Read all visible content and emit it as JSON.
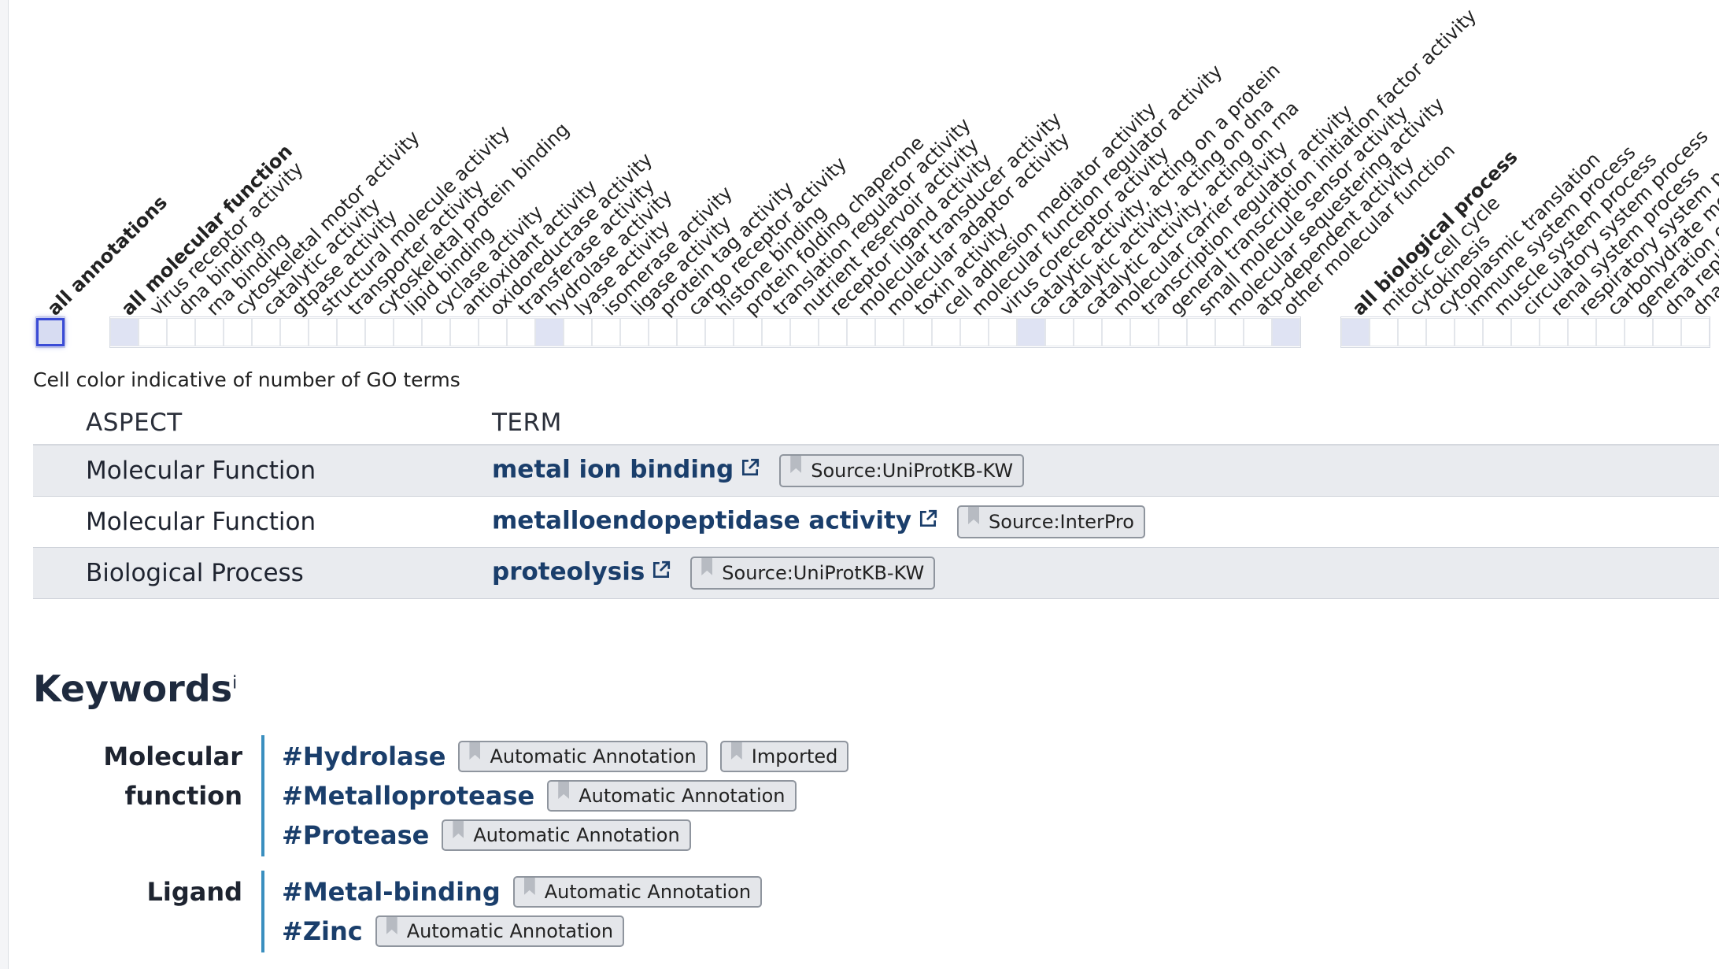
{
  "ribbon": {
    "groups": [
      {
        "labels": [
          "all annotations"
        ],
        "filled": [
          0
        ],
        "selected": [
          0
        ]
      },
      {
        "labels": [
          "all molecular function",
          "virus receptor activity",
          "dna binding",
          "rna binding",
          "cytoskeletal motor activity",
          "catalytic activity",
          "gtpase activity",
          "structural molecule activity",
          "transporter activity",
          "cytoskeletal protein binding",
          "lipid binding",
          "cyclase activity",
          "antioxidant activity",
          "oxidoreductase activity",
          "transferase activity",
          "hydrolase activity",
          "lyase activity",
          "isomerase activity",
          "ligase activity",
          "protein tag activity",
          "cargo receptor activity",
          "histone binding",
          "protein folding chaperone",
          "translation regulator activity",
          "nutrient reservoir activity",
          "receptor ligand activity",
          "molecular transducer activity",
          "molecular adaptor activity",
          "toxin activity",
          "cell adhesion mediator activity",
          "molecular function regulator activity",
          "virus coreceptor activity",
          "catalytic activity, acting on a protein",
          "catalytic activity, acting on dna",
          "catalytic activity, acting on rna",
          "molecular carrier activity",
          "transcription regulator activity",
          "general transcription initiation factor activity",
          "small molecule sensor activity",
          "molecular sequestering activity",
          "atp-dependent activity",
          "other molecular function"
        ],
        "filled": [
          0,
          15,
          32,
          41
        ],
        "selected": []
      },
      {
        "labels": [
          "all biological process",
          "mitotic cell cycle",
          "cytokinesis",
          "cytoplasmic translation",
          "immune system process",
          "muscle system process",
          "circulatory system process",
          "renal system process",
          "respiratory system process",
          "carbohydrate metabolic process",
          "generation of precursor metabolites and energy",
          "dna replication",
          "dna repair"
        ],
        "filled": [
          0
        ],
        "selected": []
      }
    ],
    "note": "Cell color indicative of number of GO terms"
  },
  "go_table": {
    "headers": {
      "aspect": "ASPECT",
      "term": "TERM"
    },
    "rows": [
      {
        "aspect": "Molecular Function",
        "term": "metal ion binding",
        "source": "Source:UniProtKB-KW"
      },
      {
        "aspect": "Molecular Function",
        "term": "metalloendopeptidase activity",
        "source": "Source:InterPro"
      },
      {
        "aspect": "Biological Process",
        "term": "proteolysis",
        "source": "Source:UniProtKB-KW"
      }
    ]
  },
  "keywords": {
    "title": "Keywords",
    "info": "i",
    "groups": [
      {
        "category_line1": "Molecular",
        "category_line2": "function",
        "items": [
          {
            "name": "#Hydrolase",
            "badges": [
              "Automatic Annotation",
              "Imported"
            ]
          },
          {
            "name": "#Metalloprotease",
            "badges": [
              "Automatic Annotation"
            ]
          },
          {
            "name": "#Protease",
            "badges": [
              "Automatic Annotation"
            ]
          }
        ]
      },
      {
        "category_line1": "Ligand",
        "category_line2": "",
        "items": [
          {
            "name": "#Metal-binding",
            "badges": [
              "Automatic Annotation"
            ]
          },
          {
            "name": "#Zinc",
            "badges": [
              "Automatic Annotation"
            ]
          }
        ]
      }
    ]
  },
  "colors": {
    "link": "#1a3e6b",
    "accent_bar": "#3a8fbf",
    "selected_cell": "#3a4bd6"
  },
  "icons": [
    "external-link-icon",
    "bookmark-icon"
  ]
}
